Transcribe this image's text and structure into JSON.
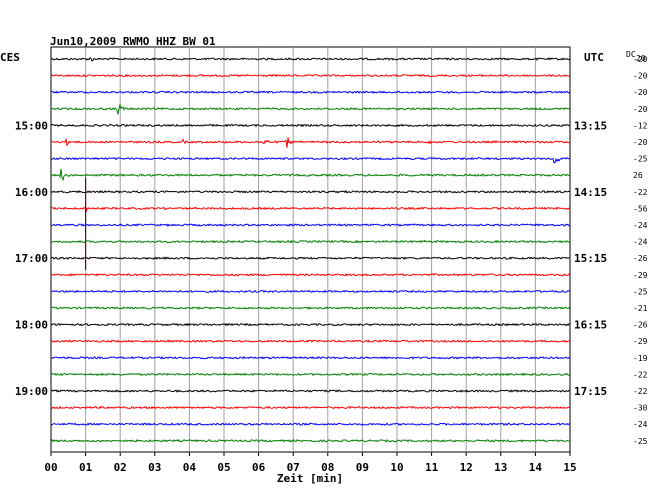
{
  "chart_data": {
    "type": "line",
    "title": "Jun10,2009   RWMO HHZ BW 01",
    "left_timezone_label": "CES",
    "right_timezone_label": "UTC",
    "dc_header": "DC",
    "dc_header_value": "20",
    "xlabel": "Zeit [min]",
    "xlim": [
      0,
      15
    ],
    "x_tick_labels": [
      "00",
      "01",
      "02",
      "03",
      "04",
      "05",
      "06",
      "07",
      "08",
      "09",
      "10",
      "11",
      "12",
      "13",
      "14",
      "15"
    ],
    "hour_labels_left": [
      {
        "row": 4,
        "label": "15:00"
      },
      {
        "row": 8,
        "label": "16:00"
      },
      {
        "row": 12,
        "label": "17:00"
      },
      {
        "row": 16,
        "label": "18:00"
      },
      {
        "row": 20,
        "label": "19:00"
      }
    ],
    "hour_labels_right": [
      {
        "row": 4,
        "label": "13:15"
      },
      {
        "row": 8,
        "label": "14:15"
      },
      {
        "row": 12,
        "label": "15:15"
      },
      {
        "row": 16,
        "label": "16:15"
      },
      {
        "row": 20,
        "label": "17:15"
      }
    ],
    "trace_colors": [
      "#000000",
      "#ff0000",
      "#0000ff",
      "#008000"
    ],
    "dc_values": [
      -20,
      -20,
      -20,
      -20,
      -12,
      -20,
      -25,
      26,
      -22,
      -56,
      -24,
      -24,
      -26,
      -29,
      -25,
      -21,
      -26,
      -29,
      -19,
      -22,
      -22,
      -30,
      -24,
      -25
    ],
    "events": [
      {
        "row": 0,
        "x_min": 1.15,
        "amp": 4
      },
      {
        "row": 3,
        "x_min": 1.95,
        "amp": 9
      },
      {
        "row": 5,
        "x_min": 0.45,
        "amp": 4
      },
      {
        "row": 5,
        "x_min": 3.8,
        "amp": 3
      },
      {
        "row": 5,
        "x_min": 6.15,
        "amp": 8
      },
      {
        "row": 5,
        "x_min": 6.8,
        "amp": 8
      },
      {
        "row": 5,
        "x_min": 10.95,
        "amp": 3
      },
      {
        "row": 6,
        "x_min": 14.55,
        "amp": 12
      },
      {
        "row": 7,
        "x_min": 0.3,
        "amp": 9
      },
      {
        "row": 8,
        "x_min": 8.5,
        "amp": 2
      },
      {
        "row": 9,
        "x_min": 1.0,
        "amp": 5
      },
      {
        "row": 11,
        "x_min": 10.8,
        "amp": 2
      },
      {
        "row": 13,
        "x_min": 5.4,
        "amp": 2
      }
    ],
    "spikes": [
      {
        "row": 8,
        "x_min": 1.0,
        "to_row": 12.7
      }
    ]
  }
}
